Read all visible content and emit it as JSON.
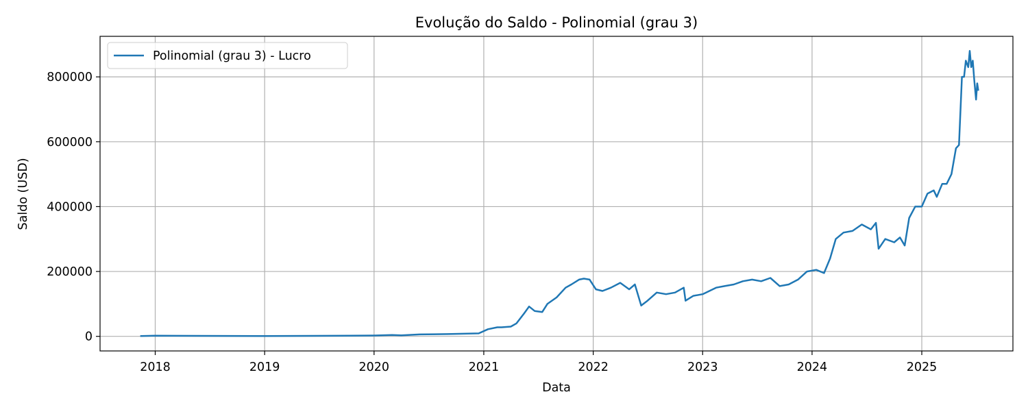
{
  "chart_data": {
    "type": "line",
    "title": "Evolução do Saldo - Polinomial (grau 3)",
    "xlabel": "Data",
    "ylabel": "Saldo (USD)",
    "x_ticks": [
      "2018",
      "2019",
      "2020",
      "2021",
      "2022",
      "2023",
      "2024",
      "2025"
    ],
    "y_ticks": [
      "0",
      "200000",
      "400000",
      "600000",
      "800000"
    ],
    "xlim": [
      "2017-07-01",
      "2025-11-01"
    ],
    "ylim": [
      -45000,
      925000
    ],
    "grid": true,
    "legend_position": "top-left",
    "series": [
      {
        "name": "Polinomial (grau 3) - Lucro",
        "color": "#1f77b4",
        "x": [
          "2017-11-15",
          "2018-01-01",
          "2018-06-01",
          "2019-01-01",
          "2019-06-01",
          "2020-01-01",
          "2020-03-01",
          "2020-04-01",
          "2020-06-01",
          "2020-09-01",
          "2020-12-15",
          "2021-01-15",
          "2021-02-15",
          "2021-03-01",
          "2021-04-01",
          "2021-04-20",
          "2021-05-15",
          "2021-06-01",
          "2021-06-20",
          "2021-07-15",
          "2021-08-01",
          "2021-09-01",
          "2021-10-01",
          "2021-10-20",
          "2021-11-15",
          "2021-12-01",
          "2021-12-20",
          "2022-01-10",
          "2022-02-01",
          "2022-03-01",
          "2022-04-01",
          "2022-05-01",
          "2022-05-20",
          "2022-06-10",
          "2022-07-01",
          "2022-08-01",
          "2022-09-01",
          "2022-10-01",
          "2022-10-30",
          "2022-11-05",
          "2022-12-01",
          "2023-01-01",
          "2023-02-15",
          "2023-03-15",
          "2023-04-15",
          "2023-05-15",
          "2023-06-15",
          "2023-07-15",
          "2023-08-15",
          "2023-09-15",
          "2023-10-15",
          "2023-11-15",
          "2023-12-15",
          "2024-01-15",
          "2024-02-10",
          "2024-03-01",
          "2024-03-20",
          "2024-04-15",
          "2024-05-15",
          "2024-06-15",
          "2024-07-15",
          "2024-08-01",
          "2024-08-10",
          "2024-09-01",
          "2024-10-01",
          "2024-10-20",
          "2024-11-05",
          "2024-11-20",
          "2024-12-10",
          "2025-01-01",
          "2025-01-20",
          "2025-02-10",
          "2025-02-20",
          "2025-03-10",
          "2025-03-25",
          "2025-04-10",
          "2025-04-25",
          "2025-05-05",
          "2025-05-15",
          "2025-05-22",
          "2025-05-28",
          "2025-06-05",
          "2025-06-10",
          "2025-06-15",
          "2025-06-20",
          "2025-06-25",
          "2025-07-01",
          "2025-07-05",
          "2025-07-08"
        ],
        "y": [
          1000,
          2000,
          1500,
          1000,
          1500,
          2500,
          4000,
          3000,
          6000,
          7000,
          9000,
          22000,
          28000,
          28000,
          30000,
          40000,
          70000,
          92000,
          78000,
          75000,
          100000,
          120000,
          150000,
          160000,
          175000,
          178000,
          175000,
          145000,
          140000,
          150000,
          165000,
          145000,
          160000,
          95000,
          110000,
          135000,
          130000,
          135000,
          150000,
          110000,
          125000,
          130000,
          150000,
          155000,
          160000,
          170000,
          175000,
          170000,
          180000,
          155000,
          160000,
          175000,
          200000,
          205000,
          195000,
          240000,
          300000,
          320000,
          325000,
          345000,
          330000,
          350000,
          270000,
          300000,
          290000,
          305000,
          280000,
          365000,
          400000,
          400000,
          440000,
          450000,
          430000,
          470000,
          470000,
          500000,
          580000,
          590000,
          800000,
          800000,
          850000,
          830000,
          880000,
          830000,
          850000,
          790000,
          730000,
          780000,
          760000
        ]
      }
    ]
  }
}
